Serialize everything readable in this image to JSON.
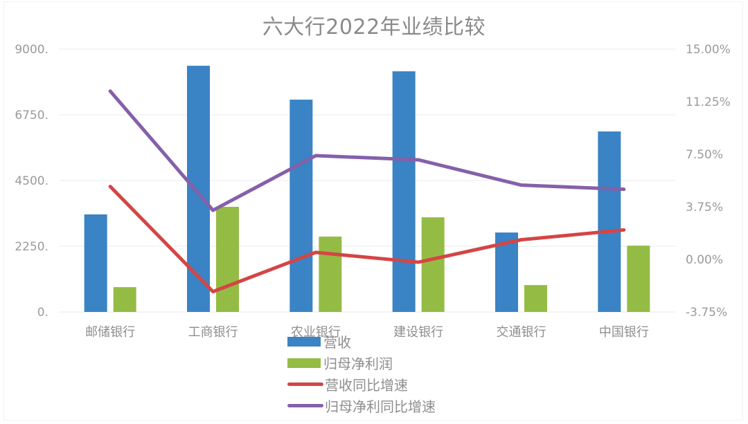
{
  "title": "六大行2022年业绩比较",
  "axes": {
    "left_ticks": [
      "9000.",
      "6750.",
      "4500.",
      "2250.",
      "0."
    ],
    "right_ticks": [
      "15.00%",
      "11.25%",
      "7.50%",
      "3.75%",
      "0.00%",
      "-3.75%"
    ]
  },
  "categories": [
    "邮储银行",
    "工商银行",
    "农业银行",
    "建设银行",
    "交通银行",
    "中国银行"
  ],
  "legend": [
    {
      "label": "营收",
      "type": "bar",
      "color": "#3a83c4"
    },
    {
      "label": "归母净利润",
      "type": "bar",
      "color": "#94bc44"
    },
    {
      "label": "营收同比增速",
      "type": "line",
      "color": "#d44545"
    },
    {
      "label": "归母净利同比增速",
      "type": "line",
      "color": "#8560aa"
    }
  ],
  "chart_data": {
    "type": "bar",
    "title": "六大行2022年业绩比较",
    "xlabel": "",
    "ylabel": "",
    "categories": [
      "邮储银行",
      "工商银行",
      "农业银行",
      "建设银行",
      "交通银行",
      "中国银行"
    ],
    "ylim": [
      0,
      9000
    ],
    "y2lim": [
      -3.75,
      15.0
    ],
    "y_ticks": [
      0,
      2250,
      4500,
      6750,
      9000
    ],
    "y2_ticks": [
      -3.75,
      0.0,
      3.75,
      7.5,
      11.25,
      15.0
    ],
    "grid": true,
    "legend_position": "bottom",
    "series": [
      {
        "name": "营收",
        "type": "bar",
        "axis": "left",
        "color": "#3a83c4",
        "values": [
          3340,
          8430,
          7270,
          8240,
          2720,
          6180
        ]
      },
      {
        "name": "归母净利润",
        "type": "bar",
        "axis": "left",
        "color": "#94bc44",
        "values": [
          850,
          3600,
          2580,
          3240,
          920,
          2270
        ]
      },
      {
        "name": "营收同比增速",
        "type": "line",
        "axis": "right",
        "unit": "%",
        "color": "#d44545",
        "values": [
          5.2,
          -2.3,
          0.5,
          -0.2,
          1.4,
          2.1
        ]
      },
      {
        "name": "归母净利同比增速",
        "type": "line",
        "axis": "right",
        "unit": "%",
        "color": "#8560aa",
        "values": [
          12.0,
          3.5,
          7.4,
          7.1,
          5.3,
          5.0
        ]
      }
    ]
  }
}
